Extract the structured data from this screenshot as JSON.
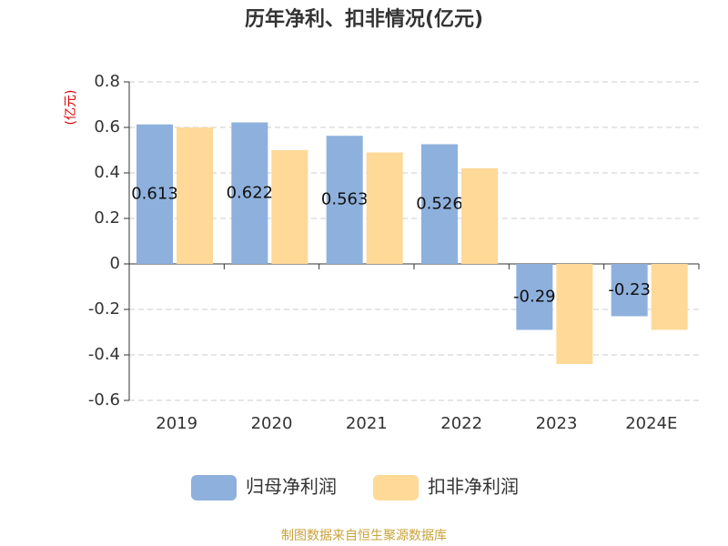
{
  "chart_data": {
    "type": "bar",
    "title": "历年净利、扣非情况(亿元)",
    "y_label": "(亿元)",
    "categories": [
      "2019",
      "2020",
      "2021",
      "2022",
      "2023",
      "2024E"
    ],
    "series": [
      {
        "name": "归母净利润",
        "color": "#8eb0dc",
        "values": [
          0.613,
          0.622,
          0.563,
          0.526,
          -0.29,
          -0.23
        ]
      },
      {
        "name": "扣非净利润",
        "color": "#fed998",
        "values": [
          0.6,
          0.5,
          0.49,
          0.42,
          -0.44,
          -0.29
        ]
      }
    ],
    "ylim": [
      -0.6,
      0.8
    ],
    "yticks": [
      -0.6,
      -0.4,
      -0.2,
      0,
      0.2,
      0.4,
      0.6,
      0.8
    ],
    "grid": true,
    "source": "制图数据来自恒生聚源数据库"
  }
}
